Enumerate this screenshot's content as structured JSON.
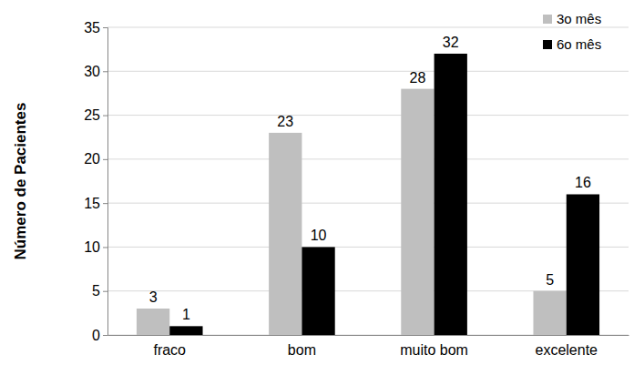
{
  "chart_data": {
    "type": "bar",
    "y_label": "Número de Pacientes",
    "categories": [
      "fraco",
      "bom",
      "muito bom",
      "excelente"
    ],
    "series": [
      {
        "name": "3o mês",
        "color": "#bfbfbf",
        "values": [
          3,
          23,
          28,
          5
        ]
      },
      {
        "name": "6o mês",
        "color": "#000000",
        "values": [
          1,
          10,
          32,
          16
        ]
      }
    ],
    "ylim": [
      0,
      35
    ],
    "yticks": [
      0,
      5,
      10,
      15,
      20,
      25,
      30,
      35
    ],
    "grid": true,
    "legend": "top-right",
    "data_labels": true
  }
}
